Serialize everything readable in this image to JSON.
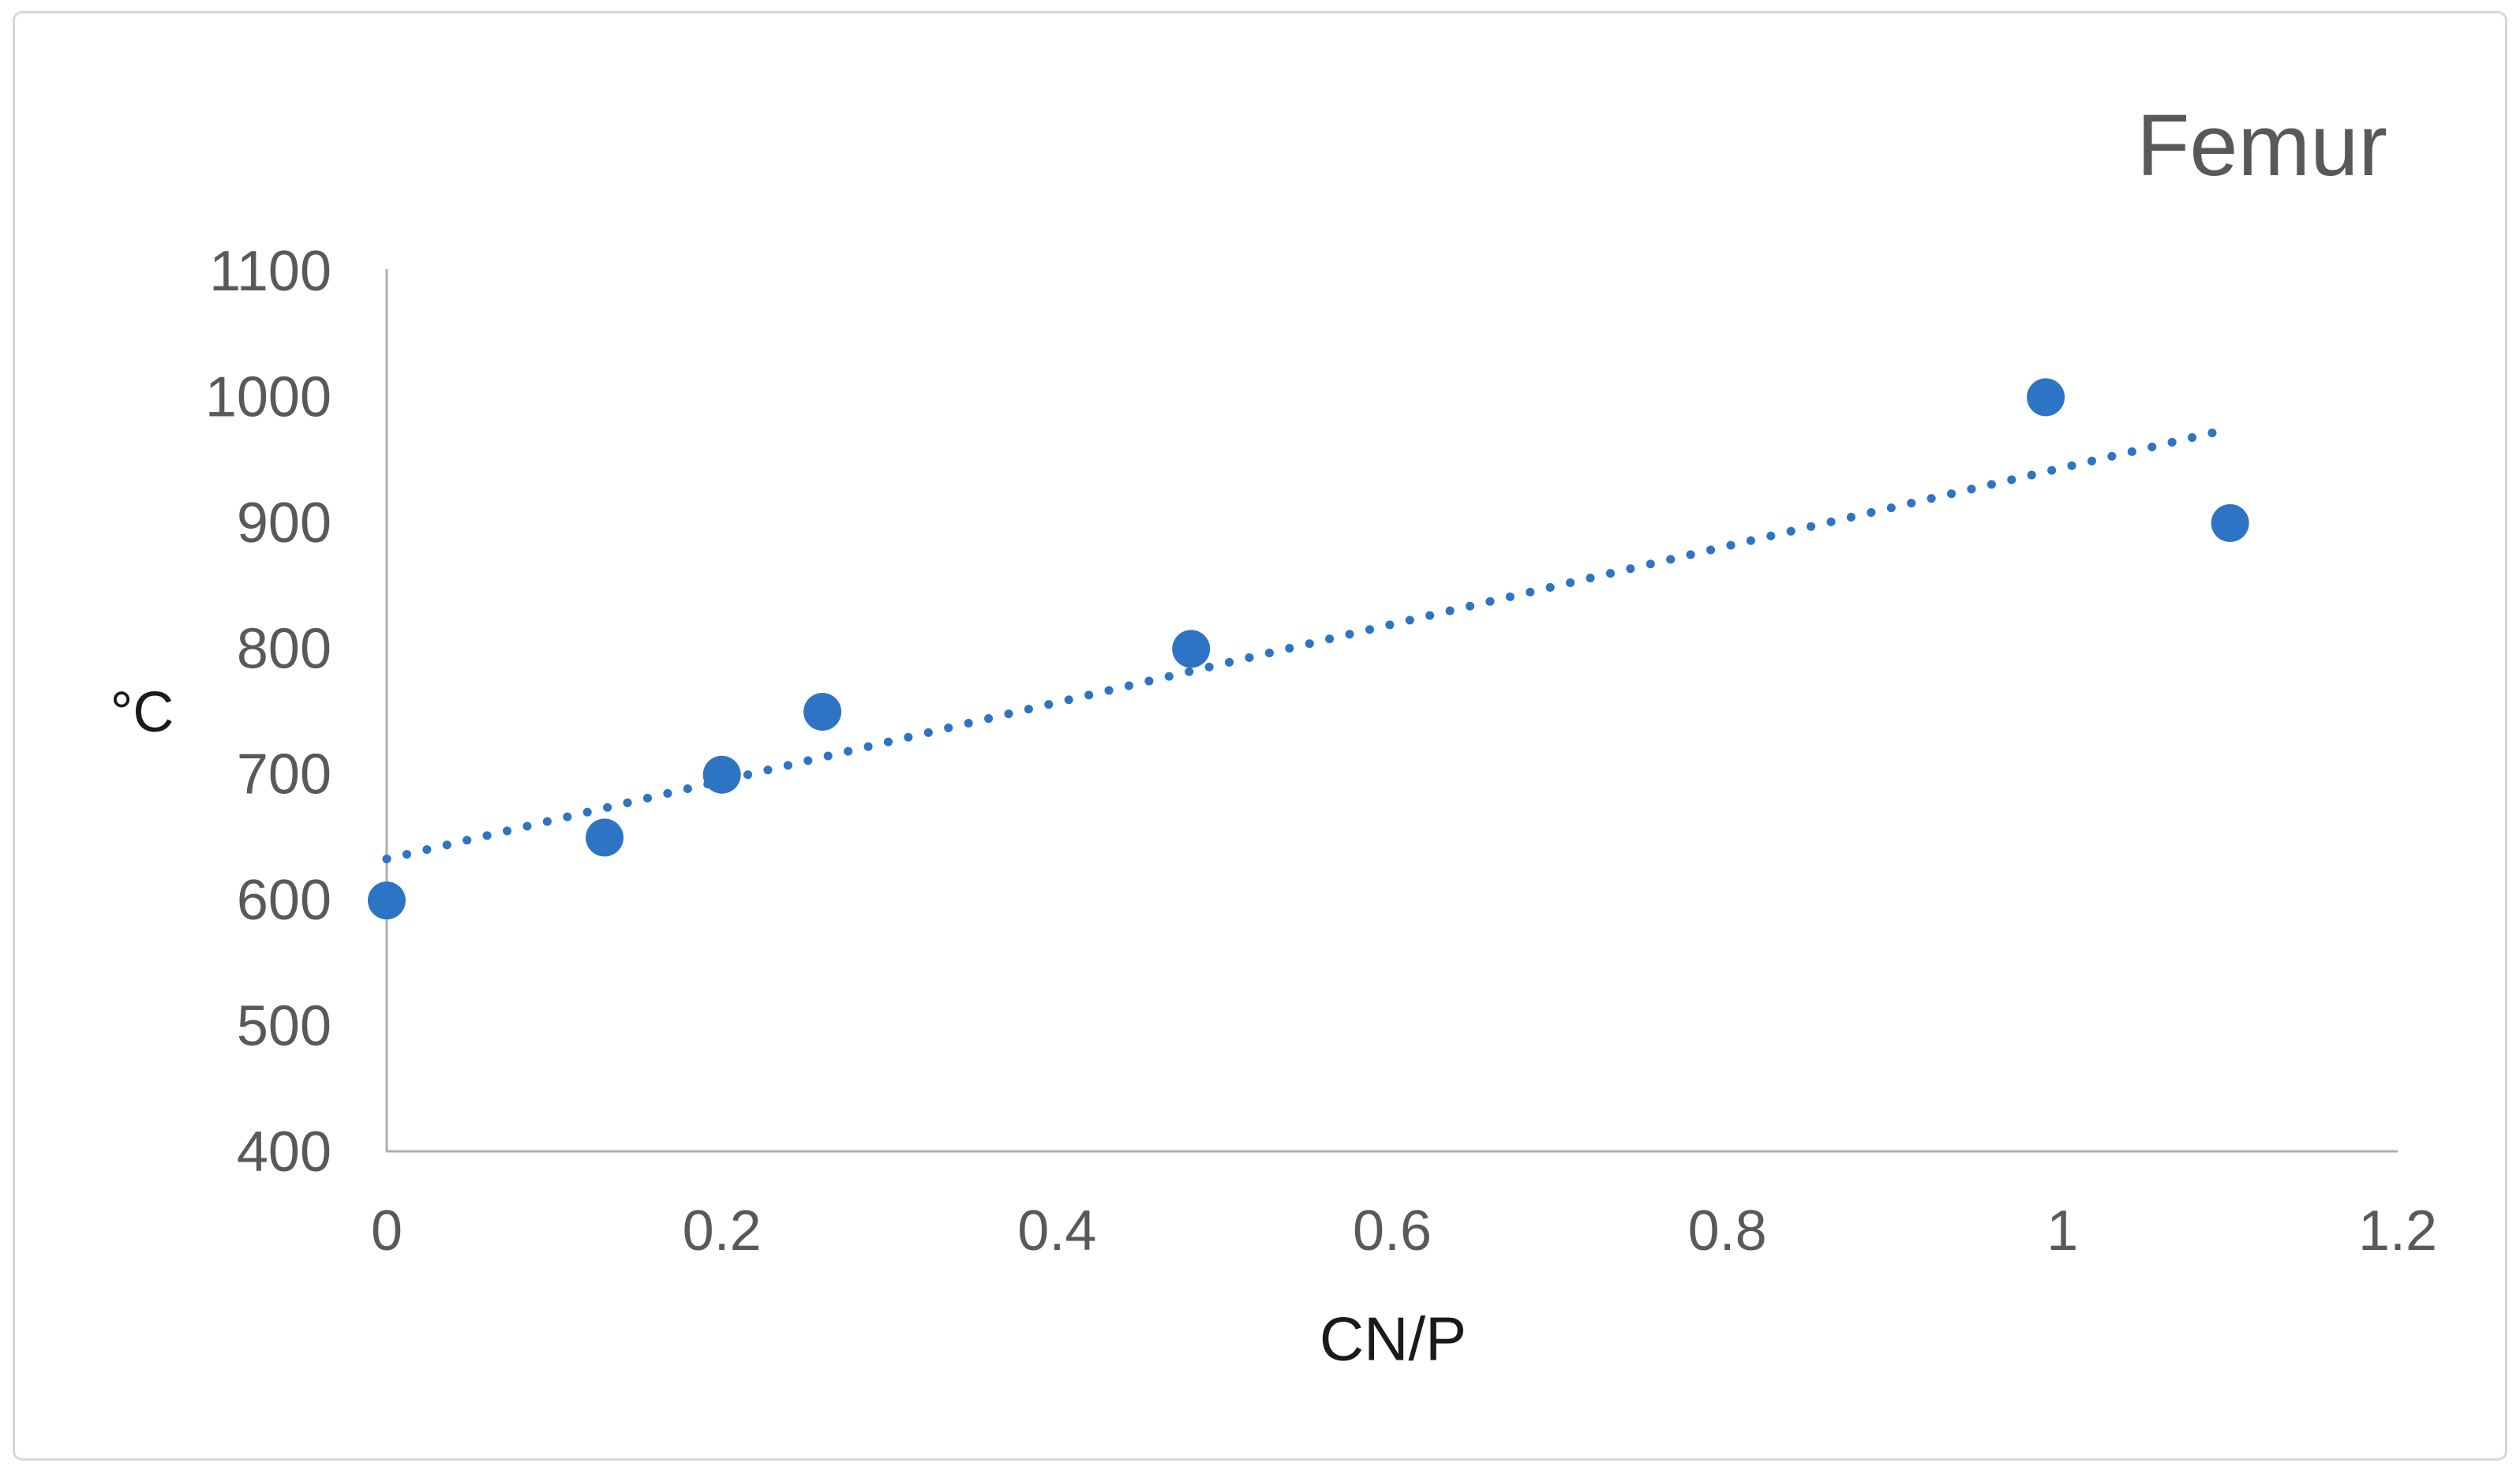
{
  "window": {
    "background": "#FFFFFF",
    "border_color": "#D7D7D7"
  },
  "chart_data": {
    "type": "scatter",
    "title": "Femur",
    "xlabel": "CN/P",
    "ylabel": "°C",
    "xlim": [
      0,
      1.2
    ],
    "ylim": [
      400,
      1100
    ],
    "grid": false,
    "legend": false,
    "x_ticks": [
      {
        "value": 0,
        "label": "0"
      },
      {
        "value": 0.2,
        "label": "0.2"
      },
      {
        "value": 0.4,
        "label": "0.4"
      },
      {
        "value": 0.6,
        "label": "0.6"
      },
      {
        "value": 0.8,
        "label": "0.8"
      },
      {
        "value": 1,
        "label": "1"
      },
      {
        "value": 1.2,
        "label": "1.2"
      }
    ],
    "y_ticks": [
      {
        "value": 400,
        "label": "400"
      },
      {
        "value": 500,
        "label": "500"
      },
      {
        "value": 600,
        "label": "600"
      },
      {
        "value": 700,
        "label": "700"
      },
      {
        "value": 800,
        "label": "800"
      },
      {
        "value": 900,
        "label": "900"
      },
      {
        "value": 1000,
        "label": "1000"
      },
      {
        "value": 1100,
        "label": "1100"
      }
    ],
    "series": [
      {
        "name": "Femur",
        "marker": "circle",
        "color": "#2E74C4",
        "points": [
          {
            "x": 0,
            "y": 600
          },
          {
            "x": 0.13,
            "y": 650
          },
          {
            "x": 0.2,
            "y": 700
          },
          {
            "x": 0.26,
            "y": 750
          },
          {
            "x": 0.48,
            "y": 800
          },
          {
            "x": 0.99,
            "y": 1000
          },
          {
            "x": 1.1,
            "y": 900
          }
        ]
      }
    ],
    "trendline": {
      "type": "linear",
      "style": "dotted",
      "color": "#2E74C4",
      "start": {
        "x": 0,
        "y": 633
      },
      "end": {
        "x": 1.1,
        "y": 975
      }
    },
    "colors": {
      "axis_line": "#B0B0B0",
      "tick_label": "#595959",
      "title": "#595959",
      "axis_title": "#1A1A1A"
    }
  }
}
